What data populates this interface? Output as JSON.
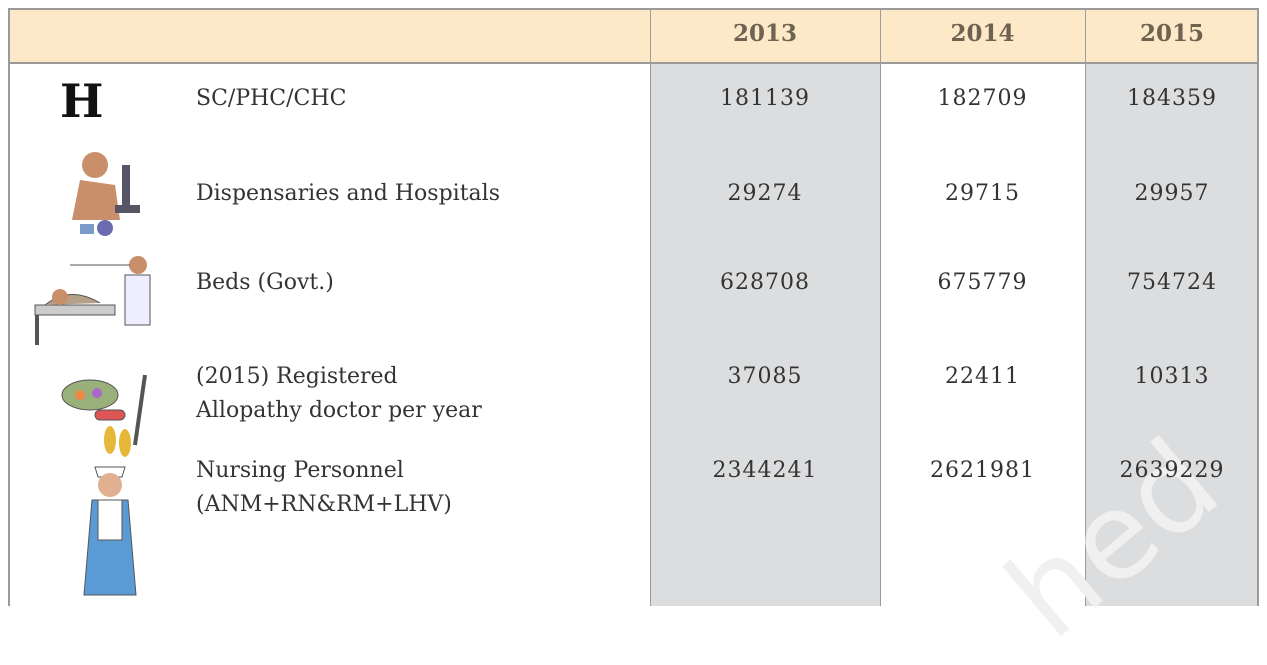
{
  "table": {
    "header": [
      "2013",
      "2014",
      "2015"
    ],
    "rows": [
      {
        "icon": "H",
        "label": [
          "SC/PHC/CHC"
        ],
        "values": [
          181139,
          182709,
          184359
        ]
      },
      {
        "label": [
          "Dispensaries and Hospitals"
        ],
        "values": [
          29274,
          29715,
          29957
        ]
      },
      {
        "label": [
          "Beds (Govt.)"
        ],
        "values": [
          628708,
          675779,
          754724
        ]
      },
      {
        "label": [
          "(2015) Registered",
          "Allopathy doctor per year"
        ],
        "values": [
          37085,
          22411,
          10313
        ]
      },
      {
        "label": [
          "Nursing Personnel",
          "(ANM+RN&RM+LHV)"
        ],
        "values": [
          2344241,
          2621981,
          2639229
        ]
      }
    ]
  },
  "watermark": "hed"
}
